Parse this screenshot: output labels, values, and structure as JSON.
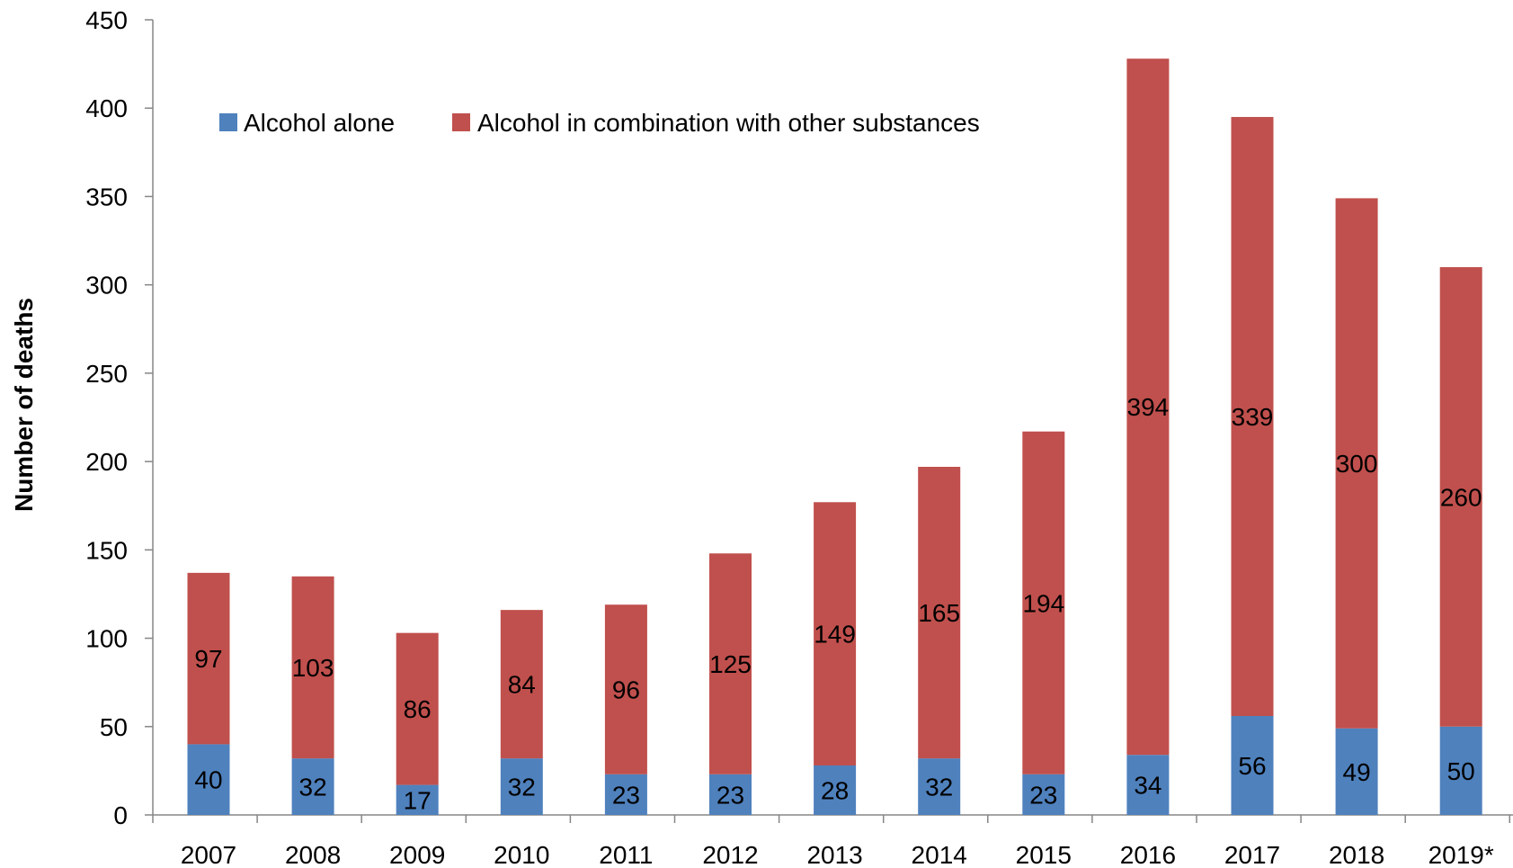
{
  "chart_data": {
    "type": "bar",
    "stacked": true,
    "title": "",
    "xlabel": "",
    "ylabel": "Number of deaths",
    "ylim": [
      0,
      450
    ],
    "yticks": [
      0,
      50,
      100,
      150,
      200,
      250,
      300,
      350,
      400,
      450
    ],
    "grid": false,
    "legend_position": "top-left",
    "categories": [
      "2007",
      "2008",
      "2009",
      "2010",
      "2011",
      "2012",
      "2013",
      "2014",
      "2015",
      "2016",
      "2017",
      "2018",
      "2019*"
    ],
    "series": [
      {
        "name": "Alcohol alone",
        "color": "#4F81BD",
        "values": [
          40,
          32,
          17,
          32,
          23,
          23,
          28,
          32,
          23,
          34,
          56,
          49,
          50
        ]
      },
      {
        "name": "Alcohol in combination with other substances",
        "color": "#C0504D",
        "values": [
          97,
          103,
          86,
          84,
          96,
          125,
          149,
          165,
          194,
          394,
          339,
          300,
          260
        ]
      }
    ]
  }
}
